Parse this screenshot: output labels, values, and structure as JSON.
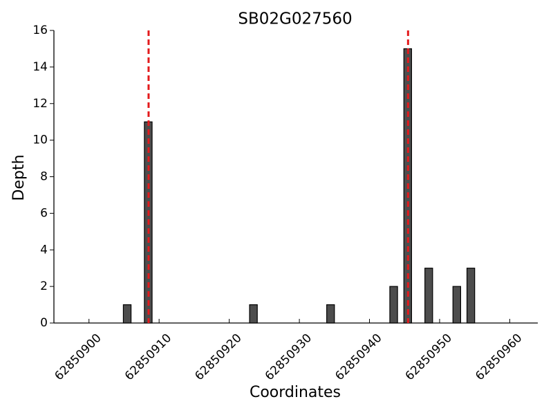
{
  "chart_data": {
    "type": "bar",
    "title": "SB02G027560",
    "x_label": "Coordinates",
    "y_label": "Depth",
    "x": [
      62850905,
      62850908,
      62850923,
      62850934,
      62850943,
      62850945,
      62850948,
      62850952,
      62850954
    ],
    "values": [
      1,
      11,
      1,
      1,
      2,
      15,
      3,
      2,
      3
    ],
    "color": "#4d4d4d",
    "xlim": [
      62850895,
      62850964
    ],
    "xticks": [
      62850900,
      62850910,
      62850920,
      62850930,
      62850940,
      62850950,
      62850960
    ],
    "ylim": [
      0,
      16
    ],
    "yticks": [
      0,
      2,
      4,
      6,
      8,
      10,
      12,
      14,
      16
    ],
    "vlines": [
      62850908.5,
      62850945.5
    ],
    "vline_color": "#e31a1c"
  }
}
